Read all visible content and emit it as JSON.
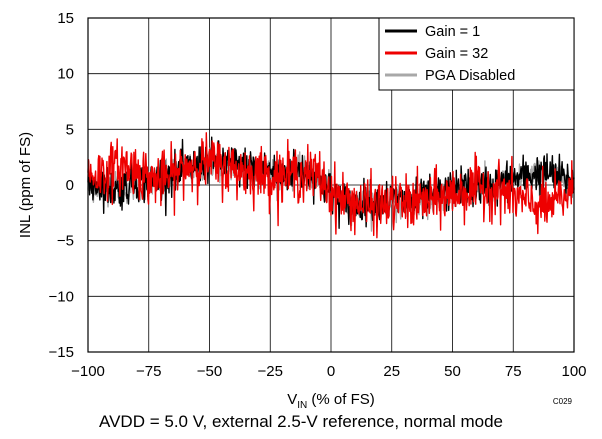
{
  "chart_data": {
    "type": "line",
    "title": "",
    "xlabel_main": "V",
    "xlabel_sub": "IN",
    "xlabel_rest": " (% of FS)",
    "ylabel": "INL (ppm of FS)",
    "xlim": [
      -100,
      100
    ],
    "ylim": [
      -15,
      15
    ],
    "x_ticks": [
      -100,
      -75,
      -50,
      -25,
      0,
      25,
      50,
      75,
      100
    ],
    "x_tick_labels": [
      "−100",
      "−75",
      "−50",
      "−25",
      "0",
      "25",
      "50",
      "75",
      "100"
    ],
    "y_ticks": [
      -15,
      -10,
      -5,
      0,
      5,
      10,
      15
    ],
    "y_tick_labels": [
      "−15",
      "−10",
      "−5",
      "0",
      "5",
      "10",
      "15"
    ],
    "grid": true,
    "legend_position": "top-right",
    "series": [
      {
        "name": "Gain = 1",
        "color": "#000000",
        "x": [
          -100,
          -95,
          -90,
          -85,
          -80,
          -75,
          -70,
          -65,
          -60,
          -55,
          -50,
          -45,
          -40,
          -35,
          -30,
          -25,
          -20,
          -15,
          -10,
          -5,
          0,
          5,
          10,
          15,
          20,
          25,
          30,
          35,
          40,
          45,
          50,
          55,
          60,
          65,
          70,
          75,
          80,
          85,
          90,
          95,
          100
        ],
        "y": [
          0.0,
          0.2,
          -0.4,
          -0.2,
          0.4,
          0.2,
          0.8,
          1.0,
          1.3,
          1.8,
          2.2,
          2.1,
          1.8,
          1.6,
          1.4,
          1.2,
          1.0,
          1.3,
          1.2,
          0.6,
          -0.8,
          -1.5,
          -1.7,
          -1.5,
          -1.4,
          -1.3,
          -1.5,
          -1.4,
          -1.2,
          -0.9,
          -0.5,
          -0.2,
          -0.2,
          -0.1,
          0.2,
          0.5,
          0.8,
          1.0,
          1.1,
          0.6,
          0.3
        ]
      },
      {
        "name": "Gain = 32",
        "color": "#ee0000",
        "x": [
          -100,
          -95,
          -90,
          -85,
          -80,
          -75,
          -70,
          -65,
          -60,
          -55,
          -50,
          -45,
          -40,
          -35,
          -30,
          -25,
          -20,
          -15,
          -10,
          -5,
          0,
          5,
          10,
          15,
          20,
          25,
          30,
          35,
          40,
          45,
          50,
          55,
          60,
          65,
          70,
          75,
          80,
          85,
          90,
          95,
          100
        ],
        "y": [
          1.0,
          1.0,
          1.4,
          1.8,
          1.4,
          0.6,
          0.4,
          0.8,
          1.6,
          2.0,
          2.0,
          1.6,
          1.4,
          1.2,
          1.0,
          0.8,
          0.9,
          1.0,
          1.0,
          0.8,
          -0.6,
          -1.3,
          -1.6,
          -1.8,
          -1.9,
          -1.6,
          -1.7,
          -1.6,
          -1.5,
          -1.2,
          -0.8,
          -0.6,
          -0.3,
          -0.3,
          -0.5,
          -1.0,
          -1.6,
          -1.8,
          -2.0,
          -1.2,
          -0.4
        ]
      },
      {
        "name": "PGA Disabled",
        "color": "#a8a8a8",
        "x": [
          -100,
          -95,
          -90,
          -85,
          -80,
          -75,
          -70,
          -65,
          -60,
          -55,
          -50,
          -45,
          -40,
          -35,
          -30,
          -25,
          -20,
          -15,
          -10,
          -5,
          0,
          5,
          10,
          15,
          20,
          25,
          30,
          35,
          40,
          45,
          50,
          55,
          60,
          65,
          70,
          75,
          80,
          85,
          90,
          95,
          100
        ],
        "y": [
          -0.2,
          0.0,
          -0.2,
          -0.3,
          0.0,
          0.2,
          0.4,
          0.8,
          1.2,
          1.6,
          2.0,
          1.8,
          1.6,
          1.4,
          1.2,
          1.1,
          1.0,
          1.1,
          1.0,
          0.5,
          -0.8,
          -1.4,
          -1.7,
          -1.8,
          -1.7,
          -1.5,
          -1.6,
          -1.5,
          -1.3,
          -1.0,
          -0.6,
          -0.3,
          -0.2,
          -0.1,
          0.1,
          0.4,
          0.7,
          0.9,
          1.0,
          0.7,
          0.2
        ]
      }
    ],
    "figure_code": "C029",
    "caption": "AVDD = 5.0 V, external 2.5-V reference, normal mode"
  }
}
